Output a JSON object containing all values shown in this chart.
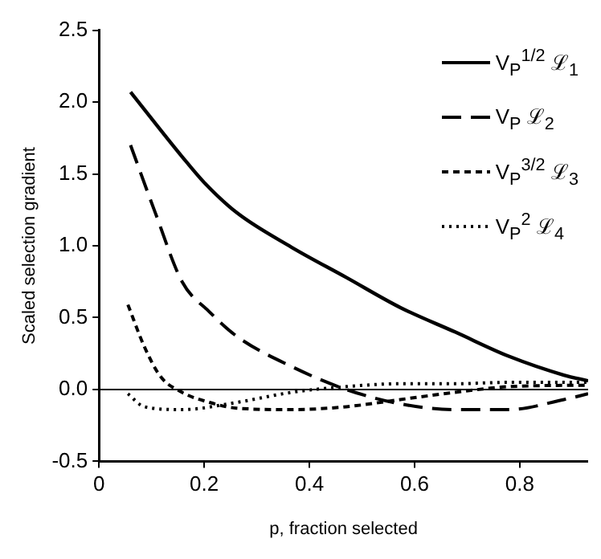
{
  "chart_data": {
    "type": "line",
    "xlabel": "p, fraction selected",
    "ylabel": "Scaled selection gradient",
    "xlim": [
      0,
      0.93
    ],
    "xticks": [
      0,
      0.2,
      0.4,
      0.6,
      0.8
    ],
    "ylim": [
      -0.5,
      2.5
    ],
    "yticks": [
      {
        "value": -0.5,
        "label": "-0.5"
      },
      {
        "value": 0,
        "label": "0.0"
      },
      {
        "value": 0.5,
        "label": "0.5"
      },
      {
        "value": 1,
        "label": "1.0"
      },
      {
        "value": 1.5,
        "label": "1.5"
      },
      {
        "value": 2,
        "label": "2.0"
      },
      {
        "value": 2.5,
        "label": "2.5"
      }
    ],
    "grid": false,
    "legend": "top right",
    "marker": "none",
    "ref_lines": [
      {
        "axis": "y",
        "value": 0,
        "color": "#000000",
        "line_style": "solid"
      }
    ],
    "series": [
      {
        "name": "V$_{P}$$^{1/2}$ ℒ$_{1}$",
        "color": "#000000",
        "line_style": "solid",
        "x": [
          0.06,
          0.158,
          0.2,
          0.262,
          0.366,
          0.47,
          0.573,
          0.677,
          0.78,
          0.884,
          0.93
        ],
        "values": [
          2.07,
          1.62,
          1.44,
          1.23,
          0.99,
          0.78,
          0.57,
          0.4,
          0.23,
          0.1,
          0.06
        ]
      },
      {
        "name": "V$_{P}$ ℒ$_{2}$",
        "color": "#000000",
        "line_style": "dashed",
        "x": [
          0.06,
          0.107,
          0.158,
          0.21,
          0.262,
          0.366,
          0.47,
          0.573,
          0.677,
          0.78,
          0.884,
          0.93
        ],
        "values": [
          1.7,
          1.23,
          0.75,
          0.54,
          0.37,
          0.16,
          0.0,
          -0.1,
          -0.14,
          -0.14,
          -0.07,
          -0.03
        ]
      },
      {
        "name": "V$_{P}$$^{3/2}$ ℒ$_{3}$",
        "color": "#000000",
        "line_style": "shortdash",
        "x": [
          0.055,
          0.086,
          0.117,
          0.158,
          0.21,
          0.262,
          0.366,
          0.47,
          0.573,
          0.677,
          0.78,
          0.93
        ],
        "values": [
          0.59,
          0.3,
          0.09,
          -0.02,
          -0.09,
          -0.13,
          -0.14,
          -0.12,
          -0.07,
          -0.02,
          0.02,
          0.03
        ]
      },
      {
        "name": "V$_{P}$$^{2}$ ℒ$_{4}$",
        "color": "#000000",
        "line_style": "dotted",
        "x": [
          0.055,
          0.086,
          0.158,
          0.262,
          0.366,
          0.47,
          0.573,
          0.677,
          0.78,
          0.93
        ],
        "values": [
          -0.03,
          -0.12,
          -0.14,
          -0.09,
          -0.02,
          0.02,
          0.04,
          0.04,
          0.05,
          0.05
        ]
      }
    ]
  }
}
